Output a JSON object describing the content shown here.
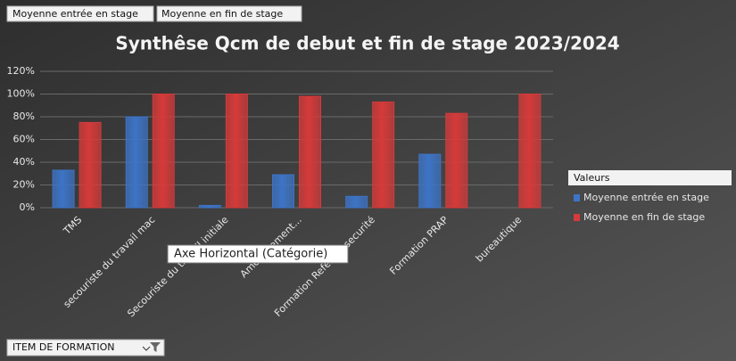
{
  "chart_data": {
    "type": "bar",
    "title": "Synthêse Qcm de debut et fin de stage 2023/2024",
    "categories": [
      "TMS",
      "secouriste du travail mac",
      "Secouriste du travail initiale",
      "Aménagement...",
      "Formation Referent securité",
      "Formation PRAP",
      "bureautique"
    ],
    "series": [
      {
        "name": "Moyenne entrée en stage",
        "color": "#3d74c6",
        "values": [
          33,
          80,
          2,
          29,
          10,
          47,
          null
        ]
      },
      {
        "name": "Moyenne en fin de stage",
        "color": "#d63a3a",
        "values": [
          75,
          100,
          100,
          98,
          93,
          83,
          100
        ]
      }
    ],
    "ylim": [
      0,
      120
    ],
    "yticks": [
      {
        "value": 0,
        "label": "0%"
      },
      {
        "value": 20,
        "label": "20%"
      },
      {
        "value": 40,
        "label": "40%"
      },
      {
        "value": 60,
        "label": "60%"
      },
      {
        "value": 80,
        "label": "80%"
      },
      {
        "value": 100,
        "label": "100%"
      },
      {
        "value": 120,
        "label": "120%"
      }
    ],
    "grid": true,
    "legend_title": "Valeurs",
    "legend_position": "right",
    "axis_field": "ITEM DE FORMATION",
    "tooltip": "Axe Horizontal (Catégorie)"
  }
}
